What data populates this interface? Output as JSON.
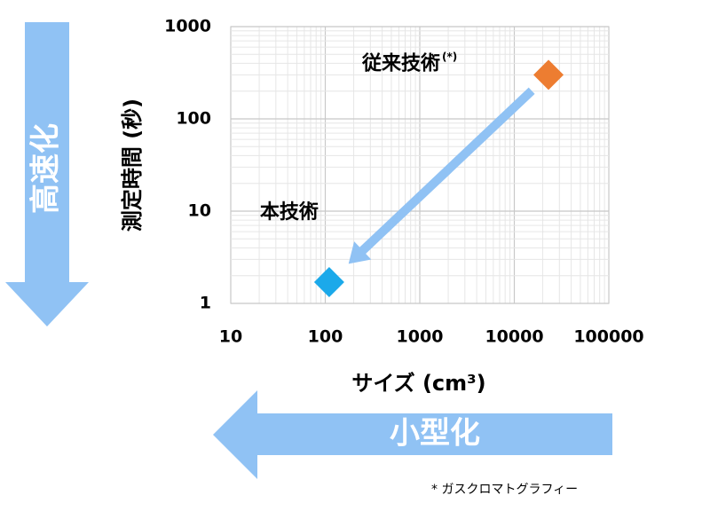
{
  "chart_data": {
    "type": "scatter",
    "xlabel": "サイズ (cm³)",
    "ylabel": "測定時間 (秒)",
    "series": [
      {
        "name": "従来技術",
        "note": "(*)",
        "color": "#ed7d31",
        "x": [
          23000
        ],
        "values": [
          300
        ]
      },
      {
        "name": "本技術",
        "color": "#1ba9ea",
        "x": [
          110
        ],
        "values": [
          1.7
        ]
      }
    ],
    "xlim": [
      10,
      100000
    ],
    "ylim": [
      1,
      1000
    ],
    "xticks": [
      10,
      100,
      1000,
      10000,
      100000
    ],
    "yticks": [
      1,
      10,
      100,
      1000
    ],
    "xscale": "log",
    "yscale": "log",
    "grid": true,
    "arrow_vertical": "高速化",
    "arrow_horizontal": "小型化",
    "footnote": "*  ガスクロマトグラフィー"
  }
}
